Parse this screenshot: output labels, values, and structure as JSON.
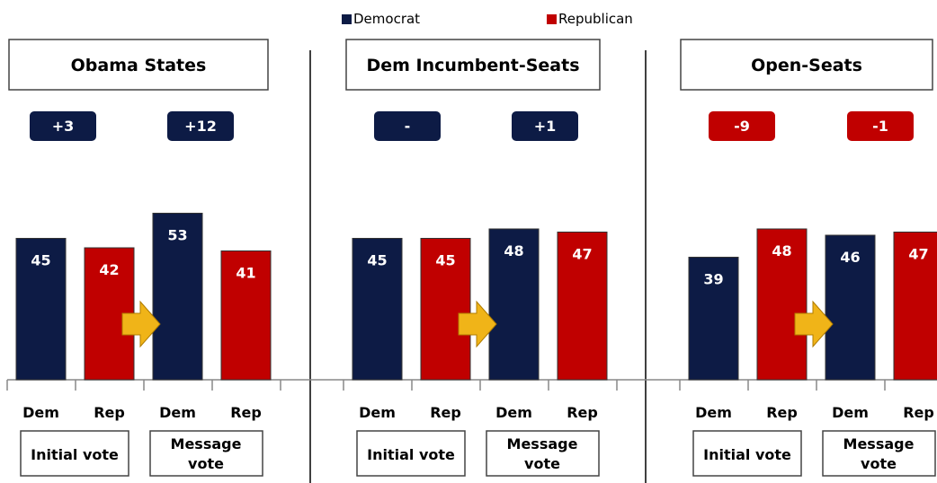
{
  "legend": [
    {
      "label": "Democrat",
      "color": "#0d1b45"
    },
    {
      "label": "Republican",
      "color": "#c00000"
    }
  ],
  "colors": {
    "dem": "#0d1b45",
    "rep": "#c00000",
    "arrow": "#f0b418",
    "arrow_stroke": "#b07c00"
  },
  "chart_data": [
    {
      "type": "bar",
      "title": "Obama States",
      "categories": [
        "Dem",
        "Rep",
        "Dem",
        "Rep"
      ],
      "groups": [
        "Initial vote",
        "Message vote"
      ],
      "series": [
        {
          "name": "Democrat",
          "values": [
            45,
            null,
            53,
            null
          ]
        },
        {
          "name": "Republican",
          "values": [
            null,
            42,
            null,
            41
          ]
        }
      ],
      "values": [
        45,
        42,
        53,
        41
      ],
      "margins": [
        {
          "label": "+3",
          "party": "dem"
        },
        {
          "label": "+12",
          "party": "dem"
        }
      ]
    },
    {
      "type": "bar",
      "title": "Dem Incumbent-Seats",
      "categories": [
        "Dem",
        "Rep",
        "Dem",
        "Rep"
      ],
      "groups": [
        "Initial vote",
        "Message vote"
      ],
      "series": [
        {
          "name": "Democrat",
          "values": [
            45,
            null,
            48,
            null
          ]
        },
        {
          "name": "Republican",
          "values": [
            null,
            45,
            null,
            47
          ]
        }
      ],
      "values": [
        45,
        45,
        48,
        47
      ],
      "margins": [
        {
          "label": "-",
          "party": "dem"
        },
        {
          "label": "+1",
          "party": "dem"
        }
      ]
    },
    {
      "type": "bar",
      "title": "Open-Seats",
      "categories": [
        "Dem",
        "Rep",
        "Dem",
        "Rep"
      ],
      "groups": [
        "Initial vote",
        "Message vote"
      ],
      "series": [
        {
          "name": "Democrat",
          "values": [
            39,
            null,
            46,
            null
          ]
        },
        {
          "name": "Republican",
          "values": [
            null,
            48,
            null,
            47
          ]
        }
      ],
      "values": [
        39,
        48,
        46,
        47
      ],
      "margins": [
        {
          "label": "-9",
          "party": "rep"
        },
        {
          "label": "-1",
          "party": "rep"
        }
      ]
    }
  ]
}
